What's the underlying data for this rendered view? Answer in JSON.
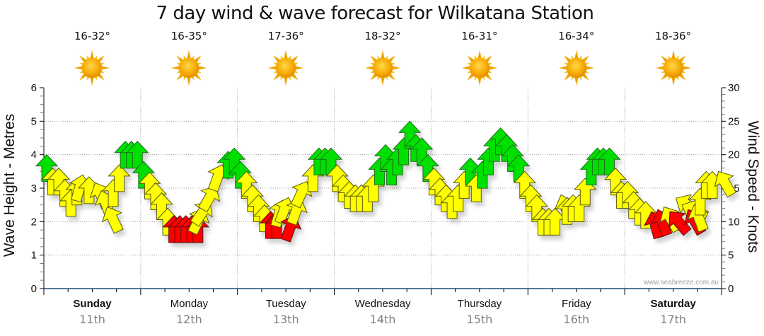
{
  "chart_data": {
    "type": "scatter",
    "title": "7 day wind & wave forecast for Wilkatana Station",
    "ylabel_left": "Wave Height - Metres",
    "ylabel_right": "Wind Speed - Knots",
    "ylim_left": [
      0,
      6
    ],
    "ylim_right": [
      0,
      30
    ],
    "yticks_left": [
      "0",
      "1",
      "2",
      "3",
      "4",
      "5",
      "6"
    ],
    "yticks_right": [
      "0",
      "5",
      "10",
      "15",
      "20",
      "25",
      "30"
    ],
    "grid": true,
    "watermark": "www.seabreeze.com.au",
    "days": [
      {
        "name": "Sunday",
        "date": "11th",
        "bold": true,
        "temp": "16-32°",
        "icon": "sunny-icon"
      },
      {
        "name": "Monday",
        "date": "12th",
        "bold": false,
        "temp": "16-35°",
        "icon": "sunny-icon"
      },
      {
        "name": "Tuesday",
        "date": "13th",
        "bold": false,
        "temp": "17-36°",
        "icon": "sunny-icon"
      },
      {
        "name": "Wednesday",
        "date": "14th",
        "bold": false,
        "temp": "18-32°",
        "icon": "sunny-icon"
      },
      {
        "name": "Thursday",
        "date": "15th",
        "bold": false,
        "temp": "16-31°",
        "icon": "sunny-icon"
      },
      {
        "name": "Friday",
        "date": "16th",
        "bold": false,
        "temp": "16-34°",
        "icon": "sunny-icon"
      },
      {
        "name": "Saturday",
        "date": "17th",
        "bold": true,
        "temp": "18-36°",
        "icon": "sunny-icon"
      }
    ],
    "points_per_day": 16,
    "color_scale": {
      "strong": "#00e000",
      "moderate": "#ffff00",
      "light": "#ff0000"
    },
    "series": [
      {
        "name": "Wind Speed (knots)",
        "unit": "knots",
        "values": [
          20,
          18,
          18,
          16.3,
          14.8,
          16.5,
          17,
          16.7,
          15.8,
          14.6,
          12.2,
          16.3,
          18.5,
          22,
          22,
          22,
          19,
          17.4,
          15.8,
          14.3,
          12,
          10.9,
          10.9,
          10.9,
          10.9,
          10.9,
          12,
          13,
          15.3,
          18.5,
          20.5,
          21,
          19,
          17.5,
          15.5,
          14,
          12.5,
          11.5,
          11.5,
          13.2,
          13.6,
          11,
          13.5,
          16,
          18.5,
          21,
          21,
          21,
          18.5,
          17,
          16,
          15.5,
          15.5,
          15.5,
          17,
          19.5,
          21.5,
          19.5,
          21,
          22.5,
          25,
          23,
          22.5,
          20,
          18,
          16.5,
          15.5,
          14.5,
          15.5,
          17.5,
          19.5,
          17,
          19,
          21,
          23,
          24,
          23,
          21.5,
          20,
          17.5,
          15.5,
          14,
          12,
          12,
          12,
          14,
          13.6,
          14,
          14,
          16.5,
          19.5,
          21,
          21,
          21,
          18,
          16,
          16,
          14.5,
          13.5,
          13,
          11.5,
          11.8,
          12.2,
          11.5,
          13.5,
          12.5,
          11.8,
          12.5,
          15,
          17.5,
          17.5,
          17.5
        ],
        "directions_deg": [
          0,
          0,
          0,
          0,
          0,
          0,
          15,
          0,
          -25,
          -20,
          -25,
          0,
          0,
          0,
          0,
          0,
          0,
          0,
          0,
          0,
          0,
          0,
          0,
          0,
          0,
          0,
          25,
          35,
          30,
          20,
          0,
          0,
          0,
          0,
          0,
          0,
          0,
          0,
          0,
          15,
          20,
          20,
          20,
          25,
          0,
          0,
          0,
          0,
          0,
          0,
          0,
          0,
          0,
          0,
          0,
          0,
          0,
          0,
          0,
          0,
          0,
          0,
          0,
          0,
          0,
          0,
          0,
          0,
          0,
          0,
          0,
          0,
          0,
          0,
          0,
          0,
          0,
          0,
          0,
          0,
          0,
          0,
          0,
          0,
          0,
          -20,
          0,
          0,
          0,
          0,
          0,
          0,
          0,
          0,
          0,
          0,
          0,
          0,
          0,
          0,
          -15,
          -20,
          -30,
          -40,
          -60,
          -65,
          -30,
          -20,
          0,
          0,
          0,
          -30
        ]
      }
    ]
  }
}
